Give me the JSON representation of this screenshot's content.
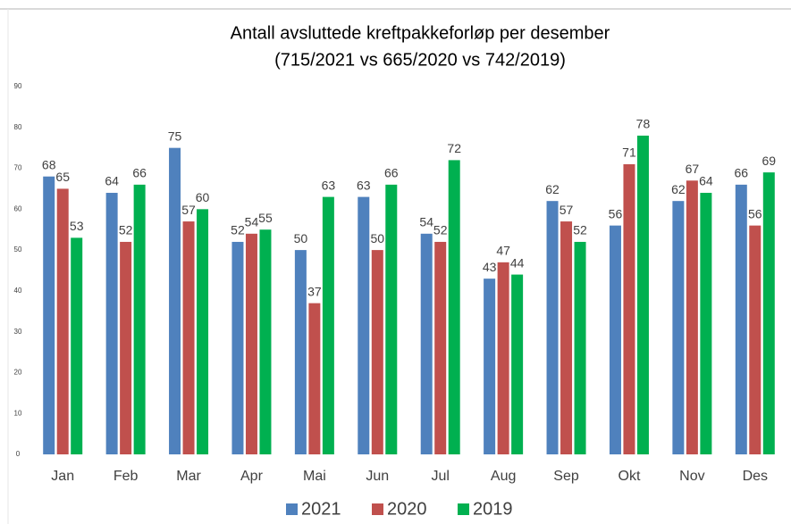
{
  "chart_data": {
    "type": "bar",
    "title": "Antall avsluttede kreftpakkeforløp per desember",
    "subtitle": "(715/2021 vs 665/2020 vs 742/2019)",
    "categories": [
      "Jan",
      "Feb",
      "Mar",
      "Apr",
      "Mai",
      "Jun",
      "Jul",
      "Aug",
      "Sep",
      "Okt",
      "Nov",
      "Des"
    ],
    "series": [
      {
        "name": "2021",
        "color": "#4f81bd",
        "values": [
          68,
          64,
          75,
          52,
          50,
          63,
          54,
          43,
          62,
          56,
          62,
          66
        ]
      },
      {
        "name": "2020",
        "color": "#c0504d",
        "values": [
          65,
          52,
          57,
          54,
          37,
          50,
          52,
          47,
          57,
          71,
          67,
          56
        ]
      },
      {
        "name": "2019",
        "color": "#00b050",
        "values": [
          53,
          66,
          60,
          55,
          63,
          66,
          72,
          44,
          52,
          78,
          64,
          69
        ]
      }
    ],
    "ylim": [
      0,
      90
    ],
    "yticks": [
      0,
      10,
      20,
      30,
      40,
      50,
      60,
      70,
      80,
      90
    ],
    "grid": false,
    "legend": "bottom"
  }
}
